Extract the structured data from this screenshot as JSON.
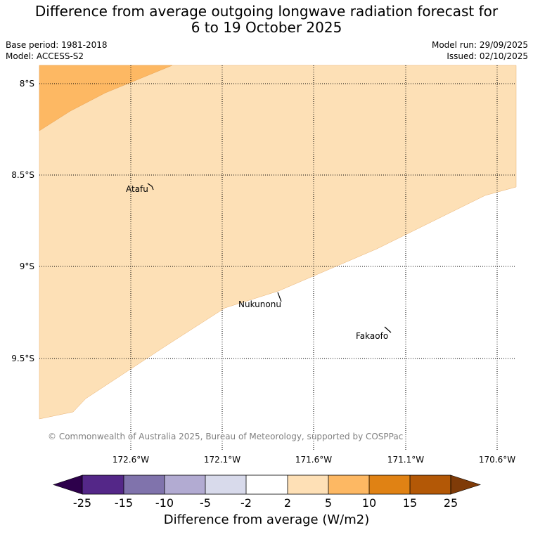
{
  "title": {
    "line1": "Difference from average outgoing longwave radiation forecast for",
    "line2": "6 to 19 October 2025"
  },
  "meta": {
    "base_period": "Base period: 1981-2018",
    "model": "Model: ACCESS-S2",
    "model_run": "Model run: 29/09/2025",
    "issued": "Issued: 02/10/2025"
  },
  "map": {
    "lat_labels": [
      "8°S",
      "8.5°S",
      "9°S",
      "9.5°S"
    ],
    "lon_labels": [
      "172.6°W",
      "172.1°W",
      "171.6°W",
      "171.1°W",
      "170.6°W"
    ],
    "places": [
      {
        "name": "Atafu"
      },
      {
        "name": "Nukunonu"
      },
      {
        "name": "Fakaofo"
      }
    ],
    "region_colors": {
      "band_2_5": "#fde0b6",
      "band_5_10": "#fdb863"
    }
  },
  "copyright": "© Commonwealth of Australia 2025, Bureau of Meteorology, supported by COSPPac",
  "colorbar": {
    "label": "Difference from average (W/m2)",
    "ticks": [
      "-25",
      "-15",
      "-10",
      "-5",
      "-2",
      "2",
      "5",
      "10",
      "15",
      "25"
    ],
    "under_color": "#2d004b",
    "over_color": "#7f3b08",
    "colors": [
      "#542788",
      "#8073ac",
      "#b2abd2",
      "#d8daeb",
      "#ffffff",
      "#fee0b6",
      "#fdb863",
      "#e08214",
      "#b35806"
    ]
  }
}
